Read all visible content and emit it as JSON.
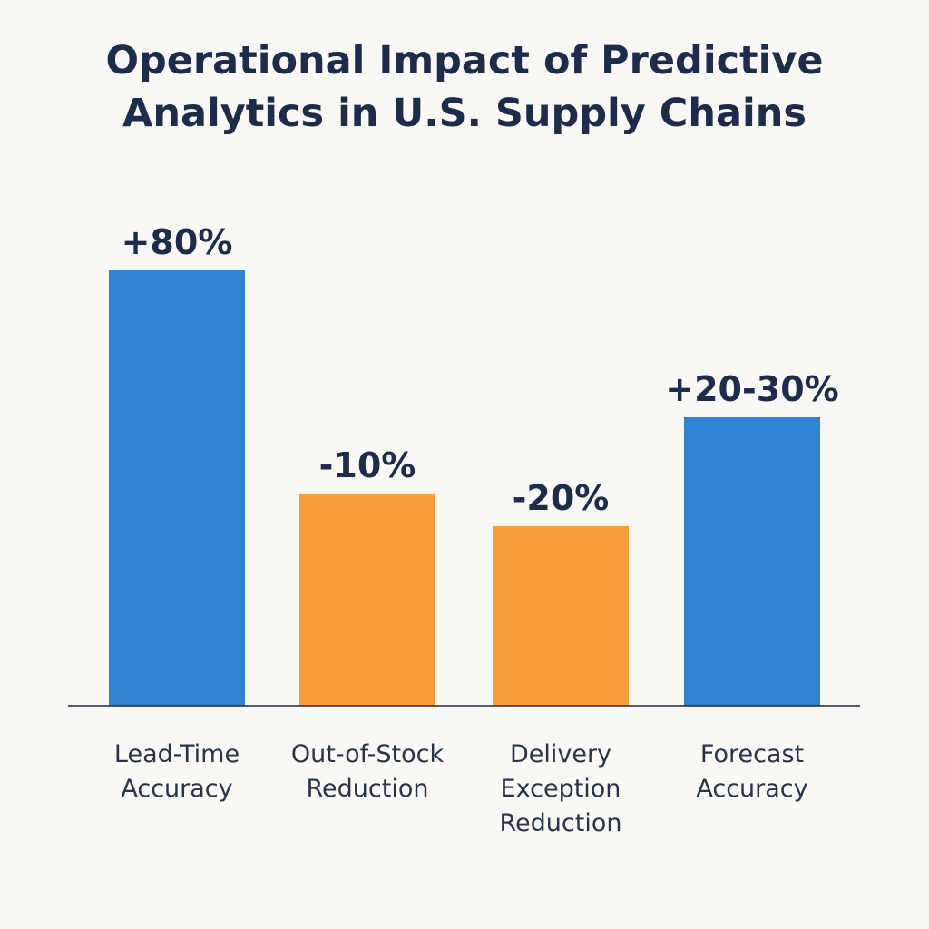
{
  "title_lines": [
    "Operational Impact of Predictive",
    "Analytics in U.S. Supply Chains"
  ],
  "chart_data": {
    "type": "bar",
    "title": "Operational Impact of Predictive Analytics in U.S. Supply Chains",
    "xlabel": "",
    "ylabel": "",
    "grid": false,
    "categories": [
      [
        "Lead-Time",
        "Accuracy"
      ],
      [
        "Out-of-Stock",
        "Reduction"
      ],
      [
        "Delivery",
        "Exception",
        "Reduction"
      ],
      [
        "Forecast",
        "Accuracy"
      ]
    ],
    "values": [
      80,
      -10,
      -20,
      25
    ],
    "display_magnitudes": [
      80,
      39,
      33,
      53
    ],
    "data_labels": [
      "+80%",
      "-10%",
      "-20%",
      "+20-30%"
    ],
    "colors": [
      "#3082d3",
      "#f99c3c",
      "#f99c3c",
      "#3082d3"
    ],
    "ylim": [
      0,
      80
    ]
  }
}
